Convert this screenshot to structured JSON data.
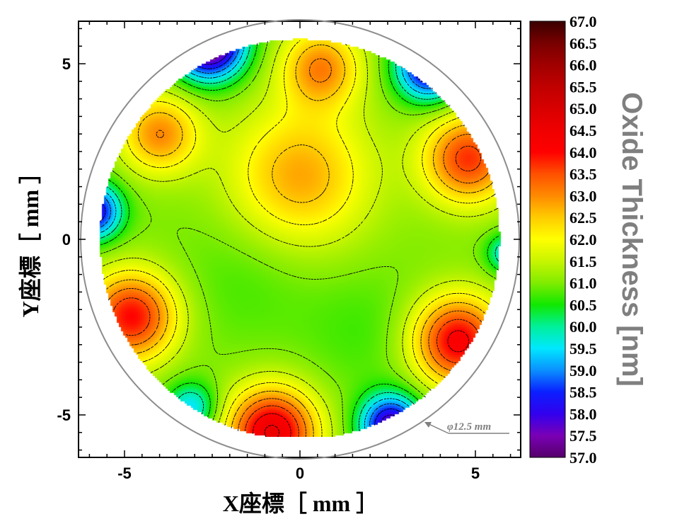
{
  "chart_data": {
    "type": "heatmap",
    "subtype": "filled-contour-wafer-map",
    "title": "",
    "xlabel": "X座標［ mm ］",
    "ylabel": "Y座標［ mm ］",
    "colorbar_label": "Oxide Thickness [nm]",
    "xlim": [
      -6.2,
      6.2
    ],
    "ylim": [
      -6.2,
      6.2
    ],
    "x_ticks": [
      -5,
      0,
      5
    ],
    "x_tick_labels": [
      "-5",
      "0",
      "5"
    ],
    "y_ticks": [
      -5,
      0,
      5
    ],
    "y_tick_labels": [
      "-5",
      "0",
      "5"
    ],
    "colorbar_range": [
      57.0,
      67.0
    ],
    "colorbar_ticks": [
      "67.0",
      "66.5",
      "66.0",
      "65.5",
      "65.0",
      "64.5",
      "64.0",
      "63.5",
      "63.0",
      "62.5",
      "62.0",
      "61.5",
      "61.0",
      "60.5",
      "60.0",
      "59.5",
      "59.0",
      "58.5",
      "58.0",
      "57.5",
      "57.0"
    ],
    "colorbar_stops": [
      {
        "value": 57.0,
        "color": "#55006a"
      },
      {
        "value": 57.5,
        "color": "#7a00b5"
      },
      {
        "value": 58.0,
        "color": "#3200ee"
      },
      {
        "value": 58.5,
        "color": "#0a1fff"
      },
      {
        "value": 59.0,
        "color": "#0a90ff"
      },
      {
        "value": 59.5,
        "color": "#00e8ff"
      },
      {
        "value": 60.0,
        "color": "#00f09a"
      },
      {
        "value": 60.5,
        "color": "#10e800"
      },
      {
        "value": 61.0,
        "color": "#80ec00"
      },
      {
        "value": 61.5,
        "color": "#c8f500"
      },
      {
        "value": 62.0,
        "color": "#ffff00"
      },
      {
        "value": 62.5,
        "color": "#ffcc00"
      },
      {
        "value": 63.0,
        "color": "#ff8a00"
      },
      {
        "value": 63.5,
        "color": "#ff5000"
      },
      {
        "value": 64.0,
        "color": "#ff0000"
      },
      {
        "value": 64.5,
        "color": "#f00000"
      },
      {
        "value": 65.0,
        "color": "#d80000"
      },
      {
        "value": 65.5,
        "color": "#c00000"
      },
      {
        "value": 66.0,
        "color": "#a00000"
      },
      {
        "value": 66.5,
        "color": "#780000"
      },
      {
        "value": 67.0,
        "color": "#3a0000"
      }
    ],
    "wafer_diameter_label": "φ12.5 mm",
    "wafer_diameter_mm": 12.5,
    "measured_region_radius_mm": 5.7,
    "contour_interval_nm": 0.5,
    "base_thickness_nm": 61.0,
    "features": [
      {
        "x": 0.0,
        "y": 1.8,
        "peak": 62.8,
        "sigma": 1.4
      },
      {
        "x": 0.6,
        "y": 4.9,
        "peak": 63.0,
        "sigma": 0.8
      },
      {
        "x": -4.0,
        "y": 3.0,
        "peak": 63.0,
        "sigma": 0.8
      },
      {
        "x": 4.8,
        "y": 2.3,
        "peak": 63.7,
        "sigma": 0.9
      },
      {
        "x": -4.8,
        "y": -2.2,
        "peak": 64.0,
        "sigma": 0.9
      },
      {
        "x": 4.5,
        "y": -2.9,
        "peak": 64.2,
        "sigma": 0.9
      },
      {
        "x": -0.8,
        "y": -5.5,
        "peak": 64.6,
        "sigma": 0.9
      },
      {
        "x": -2.6,
        "y": 5.6,
        "peak": 56.5,
        "sigma": 0.7
      },
      {
        "x": 3.7,
        "y": 4.9,
        "peak": 57.7,
        "sigma": 0.65
      },
      {
        "x": -5.9,
        "y": 0.8,
        "peak": 57.9,
        "sigma": 0.55
      },
      {
        "x": 5.9,
        "y": -0.4,
        "peak": 59.5,
        "sigma": 0.4
      },
      {
        "x": 2.6,
        "y": -5.3,
        "peak": 57.6,
        "sigma": 0.6
      },
      {
        "x": -3.1,
        "y": -4.8,
        "peak": 59.4,
        "sigma": 0.5
      },
      {
        "x": -1.5,
        "y": -1.0,
        "peak": 60.7,
        "sigma": 1.4
      },
      {
        "x": 1.8,
        "y": -2.6,
        "peak": 60.7,
        "sigma": 1.2
      }
    ]
  }
}
